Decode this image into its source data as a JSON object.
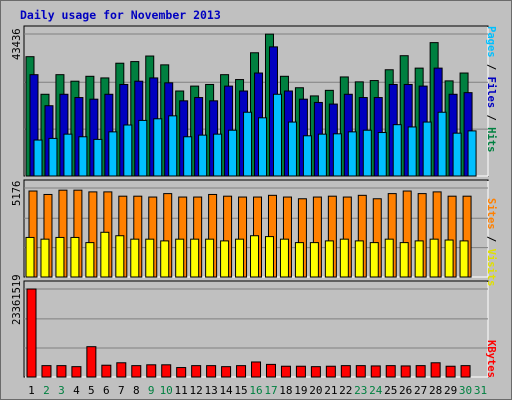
{
  "chart_data": {
    "type": "bar",
    "title": "Daily usage for November 2013",
    "categories": [
      "1",
      "2",
      "3",
      "4",
      "5",
      "6",
      "7",
      "8",
      "9",
      "10",
      "11",
      "12",
      "13",
      "14",
      "15",
      "16",
      "17",
      "18",
      "19",
      "20",
      "21",
      "22",
      "23",
      "24",
      "25",
      "26",
      "27",
      "28",
      "29",
      "30",
      "31"
    ],
    "weekend_days": [
      "2",
      "3",
      "9",
      "10",
      "16",
      "17",
      "23",
      "24",
      "30",
      "31"
    ],
    "legend": {
      "pages": "Pages",
      "files": "Files",
      "hits": "Hits",
      "sites": "Sites",
      "visits": "Visits",
      "kbytes": "KBytes",
      "sep": " / "
    },
    "panels": [
      {
        "name": "hits-files-pages",
        "max_label": "43436",
        "ylim": [
          0,
          43436
        ],
        "series": [
          {
            "name": "Hits",
            "color": "#008040",
            "values": [
              36500,
              25000,
              31000,
              29000,
              30500,
              30000,
              34500,
              35000,
              36700,
              34000,
              26000,
              27500,
              28000,
              31000,
              29500,
              37700,
              43400,
              30500,
              27000,
              24500,
              26200,
              30300,
              28800,
              29200,
              32500,
              36800,
              33000,
              40800,
              29100,
              31500,
              null
            ]
          },
          {
            "name": "Files",
            "color": "#0000c0",
            "values": [
              31000,
              21500,
              25000,
              24000,
              23500,
              25000,
              28000,
              29000,
              30000,
              28500,
              23000,
              24000,
              23000,
              27500,
              26000,
              31500,
              39500,
              26000,
              23500,
              22500,
              22000,
              25000,
              24000,
              24000,
              28000,
              28000,
              27500,
              33000,
              25000,
              25500,
              null
            ]
          },
          {
            "name": "Pages",
            "color": "#00c0ff",
            "values": [
              11000,
              11500,
              12800,
              12000,
              11200,
              13500,
              15600,
              17000,
              17500,
              18400,
              12000,
              12500,
              12800,
              14000,
              19500,
              17800,
              25000,
              16500,
              12300,
              12800,
              12900,
              13500,
              14000,
              13300,
              15700,
              15000,
              16500,
              19500,
              13100,
              13800,
              null
            ]
          }
        ]
      },
      {
        "name": "sites-visits",
        "max_label": "5176",
        "ylim": [
          0,
          5176
        ],
        "series": [
          {
            "name": "Sites",
            "color": "#ff8000",
            "values": [
              5000,
              4800,
              5050,
              5050,
              4950,
              4950,
              4700,
              4700,
              4650,
              4850,
              4650,
              4650,
              4800,
              4700,
              4650,
              4650,
              4750,
              4650,
              4550,
              4650,
              4700,
              4650,
              4750,
              4550,
              4850,
              5000,
              4850,
              4950,
              4700,
              4700,
              null
            ]
          },
          {
            "name": "Visits",
            "color": "#ffff00",
            "values": [
              2300,
              2200,
              2300,
              2300,
              2000,
              2600,
              2400,
              2200,
              2200,
              2100,
              2200,
              2200,
              2200,
              2100,
              2200,
              2400,
              2350,
              2200,
              2000,
              2000,
              2100,
              2200,
              2100,
              2000,
              2200,
              2000,
              2100,
              2200,
              2150,
              2100,
              null
            ]
          }
        ]
      },
      {
        "name": "kbytes",
        "max_label": "23361519",
        "ylim": [
          0,
          23361519
        ],
        "series": [
          {
            "name": "KBytes",
            "color": "#ff0000",
            "values": [
              23361519,
              3020000,
              3020000,
              2750000,
              8050000,
              3130000,
              3780000,
              3020000,
              3240000,
              3240000,
              2510000,
              3020000,
              3020000,
              2750000,
              3020000,
              3990000,
              3350000,
              2860000,
              2860000,
              2750000,
              2860000,
              3020000,
              3020000,
              2940000,
              3020000,
              2940000,
              3020000,
              3780000,
              2860000,
              3020000,
              null
            ]
          }
        ]
      }
    ]
  }
}
